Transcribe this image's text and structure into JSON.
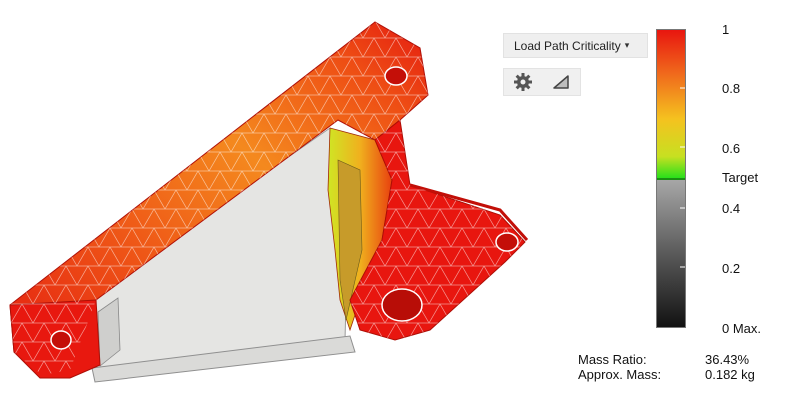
{
  "view": {
    "result_dropdown": {
      "selected": "Load Path Criticality",
      "icon": "caret-down-icon"
    },
    "toolbar": [
      {
        "name": "settings",
        "icon": "gear-icon"
      },
      {
        "name": "shading",
        "icon": "triangle-icon"
      }
    ]
  },
  "legend": {
    "ticks": [
      "1",
      "0.8",
      "0.6",
      "Target",
      "0.4",
      "0.2",
      "0 Max."
    ],
    "colors": {
      "max": "#e8140f",
      "high": "#f7891e",
      "mid": "#d6e020",
      "target": "#22e01a",
      "below_top": "#9e9e9e",
      "below_bottom": "#111111"
    }
  },
  "stats": [
    {
      "label": "Mass Ratio:",
      "value": "36.43%"
    },
    {
      "label": "Approx. Mass:",
      "value": "0.182 kg"
    }
  ]
}
